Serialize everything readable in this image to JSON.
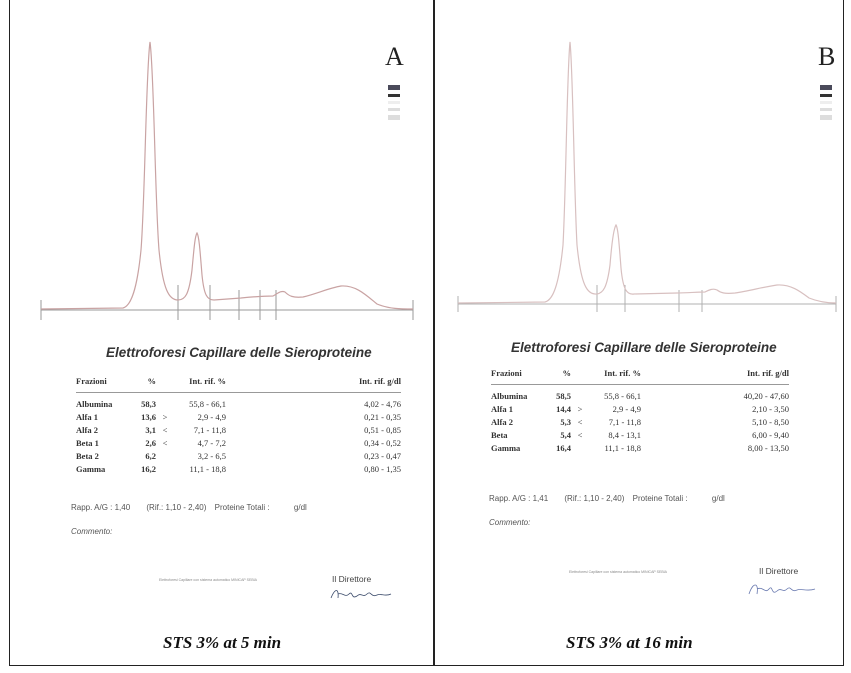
{
  "panels": [
    {
      "letter": "A",
      "report_title": "Elettroforesi Capillare delle Sieroproteine",
      "headers": {
        "fraction": "Frazioni",
        "pct": "%",
        "ref_pct": "Int. rif. %",
        "ref_gdl": "Int. rif. g/dl"
      },
      "rows": [
        {
          "name": "Albumina",
          "pct": "58,3",
          "flag": "",
          "ref_pct": "55,8 - 66,1",
          "ref_gdl": "4,02 - 4,76"
        },
        {
          "name": "Alfa 1",
          "pct": "13,6",
          "flag": ">",
          "ref_pct": "2,9 - 4,9",
          "ref_gdl": "0,21 - 0,35"
        },
        {
          "name": "Alfa 2",
          "pct": "3,1",
          "flag": "<",
          "ref_pct": "7,1 - 11,8",
          "ref_gdl": "0,51 - 0,85"
        },
        {
          "name": "Beta 1",
          "pct": "2,6",
          "flag": "<",
          "ref_pct": "4,7 - 7,2",
          "ref_gdl": "0,34 - 0,52"
        },
        {
          "name": "Beta 2",
          "pct": "6,2",
          "flag": "",
          "ref_pct": "3,2 - 6,5",
          "ref_gdl": "0,23 - 0,47"
        },
        {
          "name": "Gamma",
          "pct": "16,2",
          "flag": "",
          "ref_pct": "11,1 - 18,8",
          "ref_gdl": "0,80 - 1,35"
        }
      ],
      "ratio": "Rapp. A/G : 1,40",
      "ratio_ref": "(Rif.: 1,10 - 2,40)",
      "total_label": "Proteine Totali :",
      "total_unit": "g/dl",
      "comment_label": "Commento:",
      "footnote": "Elettroforesi Capillare con sistema automatico MINICAP SEBIA",
      "director": "Il Direttore",
      "caption": "STS 3% at 5 min"
    },
    {
      "letter": "B",
      "report_title": "Elettroforesi Capillare delle Sieroproteine",
      "headers": {
        "fraction": "Frazioni",
        "pct": "%",
        "ref_pct": "Int. rif. %",
        "ref_gdl": "Int. rif. g/dl"
      },
      "rows": [
        {
          "name": "Albumina",
          "pct": "58,5",
          "flag": "",
          "ref_pct": "55,8 - 66,1",
          "ref_gdl": "40,20 - 47,60"
        },
        {
          "name": "Alfa 1",
          "pct": "14,4",
          "flag": ">",
          "ref_pct": "2,9 - 4,9",
          "ref_gdl": "2,10 - 3,50"
        },
        {
          "name": "Alfa 2",
          "pct": "5,3",
          "flag": "<",
          "ref_pct": "7,1 - 11,8",
          "ref_gdl": "5,10 - 8,50"
        },
        {
          "name": "Beta",
          "pct": "5,4",
          "flag": "<",
          "ref_pct": "8,4 - 13,1",
          "ref_gdl": "6,00 - 9,40"
        },
        {
          "name": "Gamma",
          "pct": "16,4",
          "flag": "",
          "ref_pct": "11,1 - 18,8",
          "ref_gdl": "8,00 - 13,50"
        }
      ],
      "ratio": "Rapp. A/G : 1,41",
      "ratio_ref": "(Rif.: 1,10 - 2,40)",
      "total_label": "Proteine Totali :",
      "total_unit": "g/dl",
      "comment_label": "Commento:",
      "footnote": "Elettroforesi Capillare con sistema automatico MINICAP SEBIA",
      "director": "Il Direttore",
      "caption": "STS 3% at 16 min"
    }
  ],
  "colors": {
    "trace": "#c9a3a3",
    "baseline": "#9a9a9a",
    "frame": "#222222",
    "band_dark": "#4a4a5a"
  }
}
